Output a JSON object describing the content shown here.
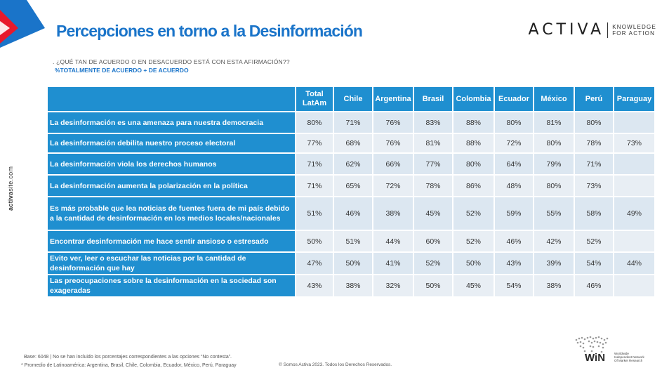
{
  "slide": {
    "title": "Percepciones en torno a la Desinformación",
    "question": ". ¿QUÉ TAN DE ACUERDO O EN DESACUERDO ESTÁ CON ESTA AFIRMACIÓN??",
    "subtitle": "%TOTALMENTE DE ACUERDO + DE ACUERDO",
    "side_url_bold": "activa",
    "side_url_rest": "site.com"
  },
  "brand": {
    "name": "ACTIVA",
    "tagline_1": "KNOWLEDGE",
    "tagline_2": "FOR ACTION"
  },
  "colors": {
    "accent": "#1a74c9",
    "header_bg": "#1f8fd0",
    "cell_bg": "#dce7f1",
    "logo_red": "#e8192c",
    "logo_blue": "#1a74c9"
  },
  "table": {
    "columns": [
      {
        "line1": "Total",
        "line2": "LatAm"
      },
      {
        "line1": "Chile",
        "line2": ""
      },
      {
        "line1": "Argentina",
        "line2": ""
      },
      {
        "line1": "Brasil",
        "line2": ""
      },
      {
        "line1": "Colombia",
        "line2": ""
      },
      {
        "line1": "Ecuador",
        "line2": ""
      },
      {
        "line1": "México",
        "line2": ""
      },
      {
        "line1": "Perú",
        "line2": ""
      },
      {
        "line1": "Paraguay",
        "line2": ""
      }
    ],
    "rows": [
      {
        "label": "La desinformación es una amenaza para nuestra democracia",
        "values": [
          "80%",
          "71%",
          "76%",
          "83%",
          "88%",
          "80%",
          "81%",
          "80%",
          ""
        ]
      },
      {
        "label": "La desinformación debilita nuestro proceso electoral",
        "values": [
          "77%",
          "68%",
          "76%",
          "81%",
          "88%",
          "72%",
          "80%",
          "78%",
          "73%"
        ]
      },
      {
        "label": "La desinformación viola los derechos humanos",
        "values": [
          "71%",
          "62%",
          "66%",
          "77%",
          "80%",
          "64%",
          "79%",
          "71%",
          ""
        ]
      },
      {
        "label": "La desinformación aumenta la polarización en la política",
        "values": [
          "71%",
          "65%",
          "72%",
          "78%",
          "86%",
          "48%",
          "80%",
          "73%",
          ""
        ]
      },
      {
        "label": "Es más probable que lea noticias de fuentes fuera de mi país debido a la cantidad de desinformación en los medios locales/nacionales",
        "values": [
          "51%",
          "46%",
          "38%",
          "45%",
          "52%",
          "59%",
          "55%",
          "58%",
          "49%"
        ]
      },
      {
        "label": "Encontrar desinformación me hace sentir ansioso o estresado",
        "values": [
          "50%",
          "51%",
          "44%",
          "60%",
          "52%",
          "46%",
          "42%",
          "52%",
          ""
        ]
      },
      {
        "label": "Evito ver, leer o escuchar las noticias por la cantidad de desinformación que hay",
        "values": [
          "47%",
          "50%",
          "41%",
          "52%",
          "50%",
          "43%",
          "39%",
          "54%",
          "44%"
        ]
      },
      {
        "label": "Las preocupaciones sobre la desinformación en la sociedad son exageradas",
        "values": [
          "43%",
          "38%",
          "32%",
          "50%",
          "45%",
          "54%",
          "38%",
          "46%",
          ""
        ]
      }
    ]
  },
  "footer": {
    "base": "Base: 6048 | No se han incluido los porcentajes correspondientes a las opciones “No contesta”.",
    "note": "* Promedio de Latinoamérica: Argentina, Brasil, Chile, Colombia, Ecuador, México, Perú, Paraguay",
    "copyright": "© Somos Activa 2023. Todos los Derechos Reservados."
  },
  "win_logo": {
    "word": "WiN",
    "line1": "Worldwide",
    "line2": "Independent Network",
    "line3": "Of Market Research"
  }
}
